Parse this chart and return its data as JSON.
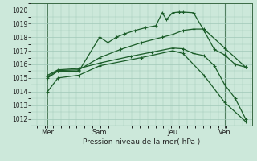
{
  "title": "",
  "xlabel": "Pression niveau de la mer( hPa )",
  "background_color": "#cce8da",
  "plot_bg_color": "#cce8da",
  "grid_color": "#a0c8b8",
  "line_color": "#1a5c28",
  "ylim": [
    1011.5,
    1020.5
  ],
  "yticks": [
    1012,
    1013,
    1014,
    1015,
    1016,
    1017,
    1018,
    1019,
    1020
  ],
  "xlim": [
    -0.3,
    10.3
  ],
  "day_labels": [
    "Mer",
    "Sam",
    "Jeu",
    "Ven"
  ],
  "day_positions": [
    0.5,
    3.0,
    6.5,
    9.0
  ],
  "vline_positions": [
    0.5,
    3.0,
    6.5,
    9.0
  ],
  "lines": [
    {
      "x": [
        0.5,
        1.0,
        2.0,
        3.0,
        3.4,
        3.8,
        4.2,
        4.7,
        5.2,
        5.7,
        6.0,
        6.2,
        6.5,
        6.8,
        7.0,
        7.5,
        8.0,
        8.5,
        9.0,
        9.5,
        10.0
      ],
      "y": [
        1015.0,
        1015.5,
        1015.5,
        1018.0,
        1017.6,
        1018.0,
        1018.25,
        1018.5,
        1018.7,
        1018.85,
        1019.8,
        1019.3,
        1019.8,
        1019.85,
        1019.85,
        1019.8,
        1018.5,
        1017.1,
        1016.7,
        1016.0,
        1015.8
      ]
    },
    {
      "x": [
        0.5,
        1.0,
        2.0,
        3.0,
        4.0,
        5.0,
        6.0,
        6.5,
        7.0,
        7.5,
        8.0,
        9.0,
        10.0
      ],
      "y": [
        1015.1,
        1015.55,
        1015.6,
        1016.5,
        1017.1,
        1017.6,
        1018.0,
        1018.2,
        1018.5,
        1018.6,
        1018.6,
        1017.2,
        1015.8
      ]
    },
    {
      "x": [
        0.5,
        1.0,
        2.0,
        3.0,
        4.5,
        5.5,
        6.5,
        7.0,
        7.5,
        8.0,
        8.5,
        9.0,
        9.5,
        10.0
      ],
      "y": [
        1015.2,
        1015.6,
        1015.7,
        1016.1,
        1016.6,
        1016.9,
        1017.2,
        1017.15,
        1016.8,
        1016.65,
        1015.9,
        1014.5,
        1013.5,
        1012.0
      ]
    },
    {
      "x": [
        0.5,
        1.0,
        2.0,
        3.0,
        5.0,
        6.5,
        7.0,
        8.0,
        9.0,
        10.0
      ],
      "y": [
        1014.0,
        1015.0,
        1015.2,
        1015.9,
        1016.5,
        1017.0,
        1016.8,
        1015.2,
        1013.2,
        1011.8
      ]
    }
  ]
}
